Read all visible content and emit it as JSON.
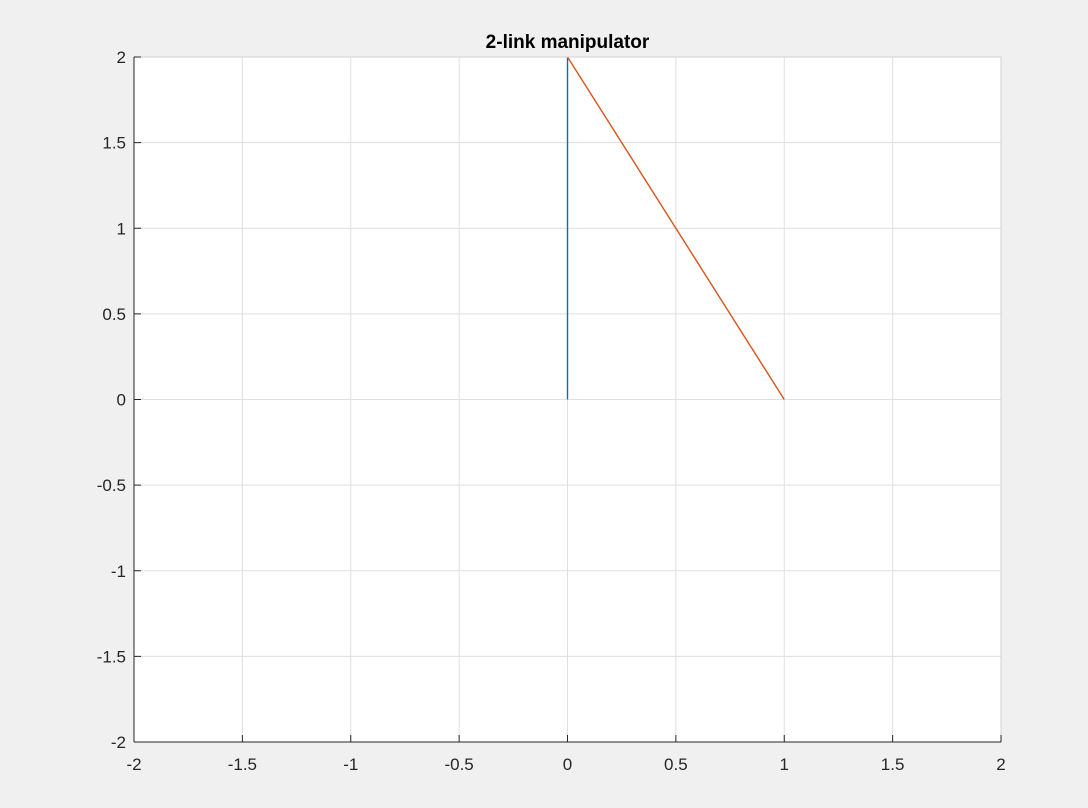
{
  "chart_data": {
    "type": "line",
    "title": "2-link manipulator",
    "xlabel": "",
    "ylabel": "",
    "xlim": [
      -2,
      2
    ],
    "ylim": [
      -2,
      2
    ],
    "grid": true,
    "legend": "none",
    "x_ticks": [
      -2,
      -1.5,
      -1,
      -0.5,
      0,
      0.5,
      1,
      1.5,
      2
    ],
    "y_ticks": [
      -2,
      -1.5,
      -1,
      -0.5,
      0,
      0.5,
      1,
      1.5,
      2
    ],
    "x_tick_labels": [
      "-2",
      "-1.5",
      "-1",
      "-0.5",
      "0",
      "0.5",
      "1",
      "1.5",
      "2"
    ],
    "y_tick_labels": [
      "-2",
      "-1.5",
      "-1",
      "-0.5",
      "0",
      "0.5",
      "1",
      "1.5",
      "2"
    ],
    "series": [
      {
        "points": [
          [
            0,
            0
          ],
          [
            0,
            2
          ]
        ],
        "color": "#0072BD"
      },
      {
        "points": [
          [
            0,
            2
          ],
          [
            1,
            0
          ]
        ],
        "color": "#D95319"
      }
    ]
  },
  "colors": {
    "figure_background": "#f0f0f0",
    "axes_background": "#ffffff",
    "grid": "#dfdfdf",
    "axis": "#262626"
  }
}
